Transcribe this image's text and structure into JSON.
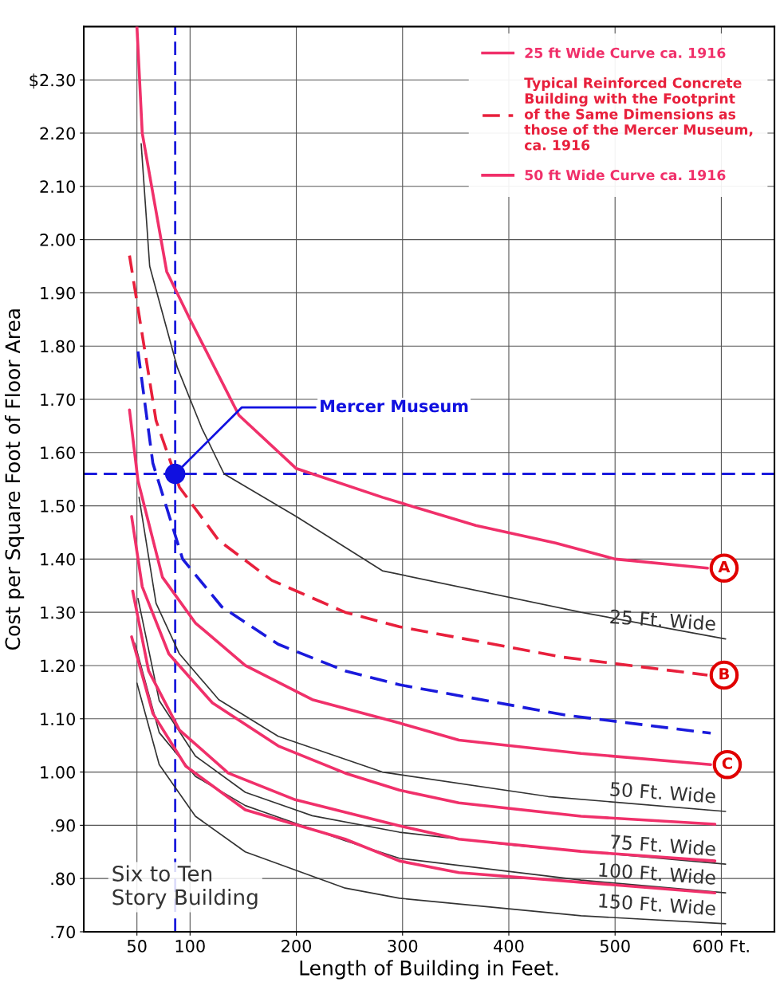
{
  "chart_data": {
    "type": "line",
    "xlabel": "Length of Building in Feet.",
    "ylabel": "Cost per Square Foot of Floor Area",
    "xlim": [
      0,
      650
    ],
    "ylim": [
      0.7,
      2.4
    ],
    "xticks": [
      50,
      100,
      200,
      300,
      400,
      500,
      {
        "value": 600,
        "label": "600 Ft."
      }
    ],
    "yticks": [
      {
        "value": 0.7,
        "label": ".70"
      },
      {
        "value": 0.8,
        "label": ".80"
      },
      {
        "value": 0.9,
        "label": ".90"
      },
      {
        "value": 1.0,
        "label": "1.00"
      },
      {
        "value": 1.1,
        "label": "1.10"
      },
      {
        "value": 1.2,
        "label": "1.20"
      },
      {
        "value": 1.3,
        "label": "1.30"
      },
      {
        "value": 1.4,
        "label": "1.40"
      },
      {
        "value": 1.5,
        "label": "1.50"
      },
      {
        "value": 1.6,
        "label": "1.60"
      },
      {
        "value": 1.7,
        "label": "1.70"
      },
      {
        "value": 1.8,
        "label": "1.80"
      },
      {
        "value": 1.9,
        "label": "1.90"
      },
      {
        "value": 2.0,
        "label": "2.00"
      },
      {
        "value": 2.1,
        "label": "2.10"
      },
      {
        "value": 2.2,
        "label": "2.20"
      },
      {
        "value": 2.3,
        "label": "$2.30"
      }
    ],
    "grid": true,
    "legend": "top right",
    "series": [
      {
        "name": "25 ft Wide Curve ca. 1916",
        "color": "#f0306a",
        "x": [
          50,
          55,
          78,
          100,
          146,
          200,
          281,
          369,
          444,
          500,
          587
        ],
        "values": [
          2.4,
          2.2,
          1.94,
          1.85,
          1.67,
          1.57,
          1.516,
          1.463,
          1.43,
          1.4,
          1.383
        ]
      },
      {
        "name": "Typical Reinforced Concrete\nBuilding with the Footprint\nof the Same Dimensions as\nthose of the Mercer Museum,\nca. 1916",
        "color": "#e8203c",
        "line_style": "dashed",
        "x": [
          43,
          68,
          90,
          127,
          177,
          246,
          297,
          450,
          587
        ],
        "values": [
          1.97,
          1.66,
          1.535,
          1.435,
          1.36,
          1.3,
          1.273,
          1.216,
          1.182
        ]
      },
      {
        "name": "50 ft Wide Curve ca. 1916",
        "color": "#f0306a",
        "x": [
          43,
          51,
          74,
          105,
          152,
          215,
          297,
          353,
          468,
          590
        ],
        "values": [
          1.68,
          1.547,
          1.366,
          1.28,
          1.2,
          1.136,
          1.092,
          1.06,
          1.035,
          1.014
        ]
      },
      {
        "color": "#1a1adc",
        "line_style": "dashed",
        "x": [
          51,
          65,
          93,
          130,
          183,
          246,
          297,
          453,
          590
        ],
        "values": [
          1.79,
          1.58,
          1.4,
          1.31,
          1.24,
          1.19,
          1.164,
          1.107,
          1.073
        ]
      },
      {
        "name": "25 Ft. Wide",
        "color": "#333333",
        "x": [
          54,
          62,
          88,
          111,
          132,
          200,
          281,
          468,
          604
        ],
        "values": [
          2.18,
          1.95,
          1.76,
          1.646,
          1.56,
          1.48,
          1.378,
          1.3,
          1.25
        ]
      },
      {
        "name": "50 Ft. Wide",
        "color": "#333333",
        "x": [
          52,
          68,
          90,
          127,
          183,
          281,
          437,
          604
        ],
        "values": [
          1.516,
          1.317,
          1.222,
          1.136,
          1.067,
          1.0,
          0.954,
          0.926
        ]
      },
      {
        "color": "#f0306a",
        "x": [
          45,
          55,
          80,
          121,
          183,
          246,
          297,
          353,
          468,
          594
        ],
        "values": [
          1.48,
          1.348,
          1.222,
          1.13,
          1.049,
          0.998,
          0.966,
          0.942,
          0.917,
          0.902
        ]
      },
      {
        "name": "75 Ft. Wide",
        "color": "#333333",
        "x": [
          51,
          71,
          105,
          152,
          215,
          297,
          406,
          604
        ],
        "values": [
          1.326,
          1.134,
          1.03,
          0.962,
          0.918,
          0.887,
          0.862,
          0.827
        ]
      },
      {
        "color": "#f0306a",
        "x": [
          46,
          61,
          90,
          136,
          199,
          297,
          353,
          468,
          594
        ],
        "values": [
          1.34,
          1.19,
          1.079,
          0.998,
          0.948,
          0.899,
          0.874,
          0.851,
          0.833
        ]
      },
      {
        "name": "100 Ft. Wide",
        "color": "#333333",
        "x": [
          48,
          71,
          105,
          152,
          246,
          297,
          468,
          604
        ],
        "values": [
          1.242,
          1.074,
          0.992,
          0.937,
          0.871,
          0.838,
          0.797,
          0.773
        ]
      },
      {
        "color": "#f0306a",
        "x": [
          45,
          65,
          96,
          152,
          246,
          297,
          353,
          468,
          594
        ],
        "values": [
          1.254,
          1.11,
          1.011,
          0.929,
          0.874,
          0.833,
          0.811,
          0.793,
          0.773
        ]
      },
      {
        "name": "150 Ft. Wide",
        "color": "#333333",
        "x": [
          50,
          71,
          105,
          152,
          246,
          297,
          468,
          604
        ],
        "values": [
          1.167,
          1.014,
          0.917,
          0.85,
          0.782,
          0.763,
          0.73,
          0.715
        ]
      },
      {
        "type": "scatter",
        "color": "#1010e0",
        "x": [
          86
        ],
        "values": [
          1.56
        ]
      }
    ],
    "ref_lines": [
      {
        "axis": "x",
        "value": 86,
        "color": "#1a1adc",
        "line_style": "dashed"
      },
      {
        "axis": "y",
        "value": 1.56,
        "color": "#1a1adc",
        "line_style": "dashed"
      }
    ],
    "annotations": [
      {
        "text": "Mercer Museum",
        "x": 86,
        "y": 1.56
      },
      {
        "text": "A",
        "x": 587,
        "y": 1.383
      },
      {
        "text": "B",
        "x": 587,
        "y": 1.182
      },
      {
        "text": "C",
        "x": 590,
        "y": 1.014
      },
      "Six to Ten\nStory Building"
    ]
  }
}
